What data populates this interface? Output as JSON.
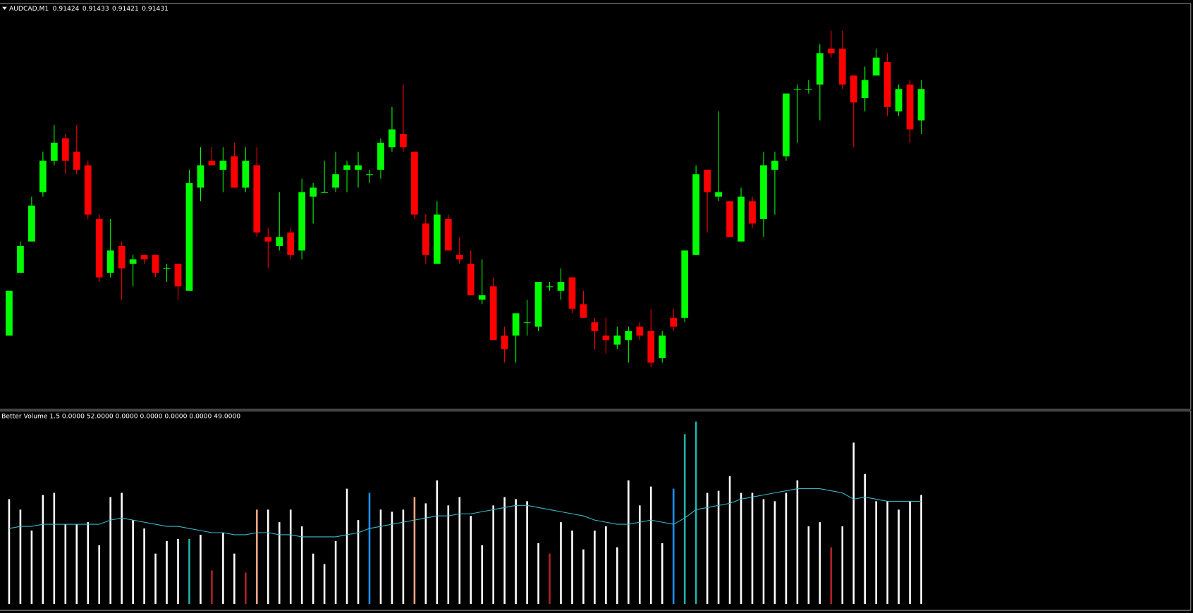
{
  "chart_data": [
    {
      "type": "candlestick",
      "title": "AUDCAD,M1",
      "open": [
        0.91376,
        0.9139,
        0.91397,
        0.91408,
        0.91415,
        0.9142,
        0.91417,
        0.91414,
        0.91402,
        0.9139,
        0.91396,
        0.91392,
        0.91394,
        0.91394,
        0.91391,
        0.91392,
        0.91386,
        0.91409,
        0.91415,
        0.91413,
        0.91416,
        0.91409,
        0.91414,
        0.91398,
        0.91396,
        0.91399,
        0.91395,
        0.91407,
        0.91408,
        0.91409,
        0.91413,
        0.91413,
        0.91412,
        0.91413,
        0.91418,
        0.91421,
        0.91417,
        0.91401,
        0.91392,
        0.91402,
        0.91394,
        0.91392,
        0.91384,
        0.91387,
        0.91376,
        0.91376,
        0.91379,
        0.91378,
        0.91387,
        0.91386,
        0.91389,
        0.91383,
        0.91379,
        0.91376,
        0.91374,
        0.91375,
        0.91378,
        0.91377,
        0.91371,
        0.9138,
        0.9138,
        0.91394,
        0.91413,
        0.91407,
        0.91406,
        0.91397,
        0.91406,
        0.91402,
        0.91413,
        0.91416,
        0.91431,
        0.91431,
        0.91432,
        0.9144,
        0.9144,
        0.91434,
        0.91429,
        0.91434,
        0.91437,
        0.91426,
        0.91432,
        0.91424
      ],
      "high": [
        0.91386,
        0.91397,
        0.91407,
        0.91417,
        0.91423,
        0.91421,
        0.91423,
        0.91415,
        0.91403,
        0.91402,
        0.91397,
        0.91394,
        0.91394,
        0.91394,
        0.91392,
        0.91392,
        0.91413,
        0.91418,
        0.91418,
        0.91418,
        0.91419,
        0.91418,
        0.91418,
        0.914,
        0.91408,
        0.914,
        0.91411,
        0.9141,
        0.91415,
        0.91417,
        0.91415,
        0.91417,
        0.91413,
        0.9142,
        0.91427,
        0.91432,
        0.91417,
        0.91403,
        0.91406,
        0.91403,
        0.91398,
        0.91395,
        0.91393,
        0.91389,
        0.91378,
        0.91381,
        0.91384,
        0.91388,
        0.91388,
        0.91391,
        0.91389,
        0.91386,
        0.9138,
        0.9138,
        0.91378,
        0.91378,
        0.91379,
        0.91382,
        0.91377,
        0.91382,
        0.91395,
        0.91414,
        0.91413,
        0.91426,
        0.91406,
        0.91409,
        0.91407,
        0.91417,
        0.91417,
        0.9143,
        0.91432,
        0.91433,
        0.91441,
        0.91444,
        0.91444,
        0.91434,
        0.91436,
        0.9144,
        0.91439,
        0.91432,
        0.91433,
        0.91433
      ],
      "low": [
        0.91376,
        0.9139,
        0.91397,
        0.91407,
        0.91414,
        0.91412,
        0.91412,
        0.91402,
        0.91388,
        0.91389,
        0.91384,
        0.91387,
        0.91392,
        0.91389,
        0.91388,
        0.91384,
        0.91386,
        0.91406,
        0.91414,
        0.91408,
        0.91409,
        0.91408,
        0.91398,
        0.91391,
        0.91395,
        0.91393,
        0.91393,
        0.91401,
        0.91408,
        0.91408,
        0.91408,
        0.91409,
        0.9141,
        0.91411,
        0.91417,
        0.91417,
        0.91402,
        0.91392,
        0.91392,
        0.91395,
        0.91392,
        0.91385,
        0.91383,
        0.91375,
        0.9137,
        0.9137,
        0.91376,
        0.91377,
        0.91386,
        0.91384,
        0.91381,
        0.9138,
        0.91373,
        0.91372,
        0.91373,
        0.9137,
        0.91375,
        0.91369,
        0.9137,
        0.91377,
        0.91379,
        0.91394,
        0.91399,
        0.91406,
        0.91398,
        0.91397,
        0.914,
        0.91398,
        0.91403,
        0.91415,
        0.91419,
        0.9143,
        0.91424,
        0.91438,
        0.91431,
        0.91418,
        0.91426,
        0.91434,
        0.91425,
        0.91425,
        0.91419,
        0.91421
      ],
      "close": [
        0.91386,
        0.91396,
        0.91405,
        0.91415,
        0.91419,
        0.91415,
        0.91413,
        0.91403,
        0.91389,
        0.91395,
        0.91391,
        0.91393,
        0.91393,
        0.9139,
        0.91391,
        0.91387,
        0.9141,
        0.91414,
        0.91414,
        0.91415,
        0.91409,
        0.91415,
        0.91399,
        0.91397,
        0.91398,
        0.91394,
        0.91408,
        0.91409,
        0.91408,
        0.91412,
        0.91414,
        0.91414,
        0.91412,
        0.91419,
        0.91422,
        0.91418,
        0.91403,
        0.91394,
        0.91403,
        0.91395,
        0.91393,
        0.91385,
        0.91385,
        0.91375,
        0.91373,
        0.91381,
        0.91379,
        0.91388,
        0.91387,
        0.91388,
        0.91382,
        0.9138,
        0.91377,
        0.91375,
        0.91376,
        0.91377,
        0.91376,
        0.9137,
        0.91376,
        0.91378,
        0.91395,
        0.91412,
        0.91408,
        0.91408,
        0.91398,
        0.91407,
        0.91401,
        0.91414,
        0.91415,
        0.9143,
        0.91431,
        0.91431,
        0.91439,
        0.91439,
        0.91432,
        0.91428,
        0.91433,
        0.91438,
        0.91427,
        0.91431,
        0.91422,
        0.91431
      ],
      "up_color": "#00ff00",
      "down_color": "#ff0000",
      "ylim": [
        0.9136,
        0.9145
      ]
    },
    {
      "type": "bar",
      "title": "Better Volume 1.5 0.0000 52.0000 0.0000 0.0000 0.0000 0.0000 49.0000",
      "values": [
        50,
        45,
        35,
        52,
        53,
        38,
        38,
        39,
        28,
        51,
        53,
        40,
        36,
        24,
        30,
        31,
        31,
        33,
        16,
        34,
        24,
        15,
        45,
        45,
        39,
        45,
        37,
        24,
        19,
        30,
        55,
        40,
        53,
        45,
        44,
        45,
        51,
        48,
        59,
        47,
        51,
        42,
        28,
        47,
        51,
        50,
        49,
        29,
        24,
        39,
        35,
        26,
        35,
        37,
        27,
        59,
        47,
        56,
        29,
        55,
        81,
        87,
        53,
        54,
        61,
        53,
        53,
        50,
        49,
        53,
        59,
        37,
        39,
        27,
        37,
        77,
        62,
        49,
        49,
        45,
        49,
        52
      ],
      "colors": [
        "#ffffff",
        "#ffffff",
        "#ffffff",
        "#ffffff",
        "#ffffff",
        "#ffffff",
        "#ffffff",
        "#ffffff",
        "#ffffff",
        "#ffffff",
        "#ffffff",
        "#ffffff",
        "#ffffff",
        "#ffffff",
        "#ffffff",
        "#ffffff",
        "#20b2aa",
        "#ffffff",
        "#b22222",
        "#ffffff",
        "#ffffff",
        "#b22222",
        "#f4a582",
        "#ffffff",
        "#ffffff",
        "#ffffff",
        "#ffffff",
        "#ffffff",
        "#ffffff",
        "#ffffff",
        "#ffffff",
        "#ffffff",
        "#1e90ff",
        "#ffffff",
        "#ffffff",
        "#ffffff",
        "#f4a582",
        "#ffffff",
        "#ffffff",
        "#ffffff",
        "#ffffff",
        "#ffffff",
        "#ffffff",
        "#ffffff",
        "#ffffff",
        "#ffffff",
        "#ffffff",
        "#ffffff",
        "#b22222",
        "#ffffff",
        "#ffffff",
        "#ffffff",
        "#ffffff",
        "#ffffff",
        "#ffffff",
        "#ffffff",
        "#ffffff",
        "#ffffff",
        "#ffffff",
        "#1e90ff",
        "#20b2aa",
        "#20b2aa",
        "#ffffff",
        "#ffffff",
        "#ffffff",
        "#ffffff",
        "#ffffff",
        "#ffffff",
        "#ffffff",
        "#ffffff",
        "#ffffff",
        "#ffffff",
        "#ffffff",
        "#b22222",
        "#ffffff",
        "#ffffff",
        "#ffffff",
        "#ffffff",
        "#ffffff",
        "#ffffff",
        "#ffffff",
        "#ffffff"
      ],
      "line": {
        "color": "#3cb8c8",
        "values": [
          36,
          37,
          37,
          38,
          38,
          38,
          38,
          38,
          38,
          40,
          41,
          40,
          39,
          38,
          37,
          37,
          36,
          35,
          34,
          34,
          33,
          33,
          34,
          34,
          33,
          33,
          32,
          32,
          32,
          32,
          33,
          34,
          36,
          37,
          38,
          39,
          40,
          41,
          42,
          42,
          43,
          43,
          44,
          45,
          46,
          47,
          47,
          46,
          45,
          44,
          43,
          42,
          40,
          39,
          38,
          38,
          39,
          40,
          39,
          38,
          41,
          45,
          46,
          47,
          48,
          50,
          51,
          52,
          53,
          54,
          55,
          55,
          55,
          54,
          53,
          50,
          51,
          50,
          49,
          49,
          49,
          49
        ]
      },
      "ylim": [
        0,
        92
      ]
    }
  ]
}
